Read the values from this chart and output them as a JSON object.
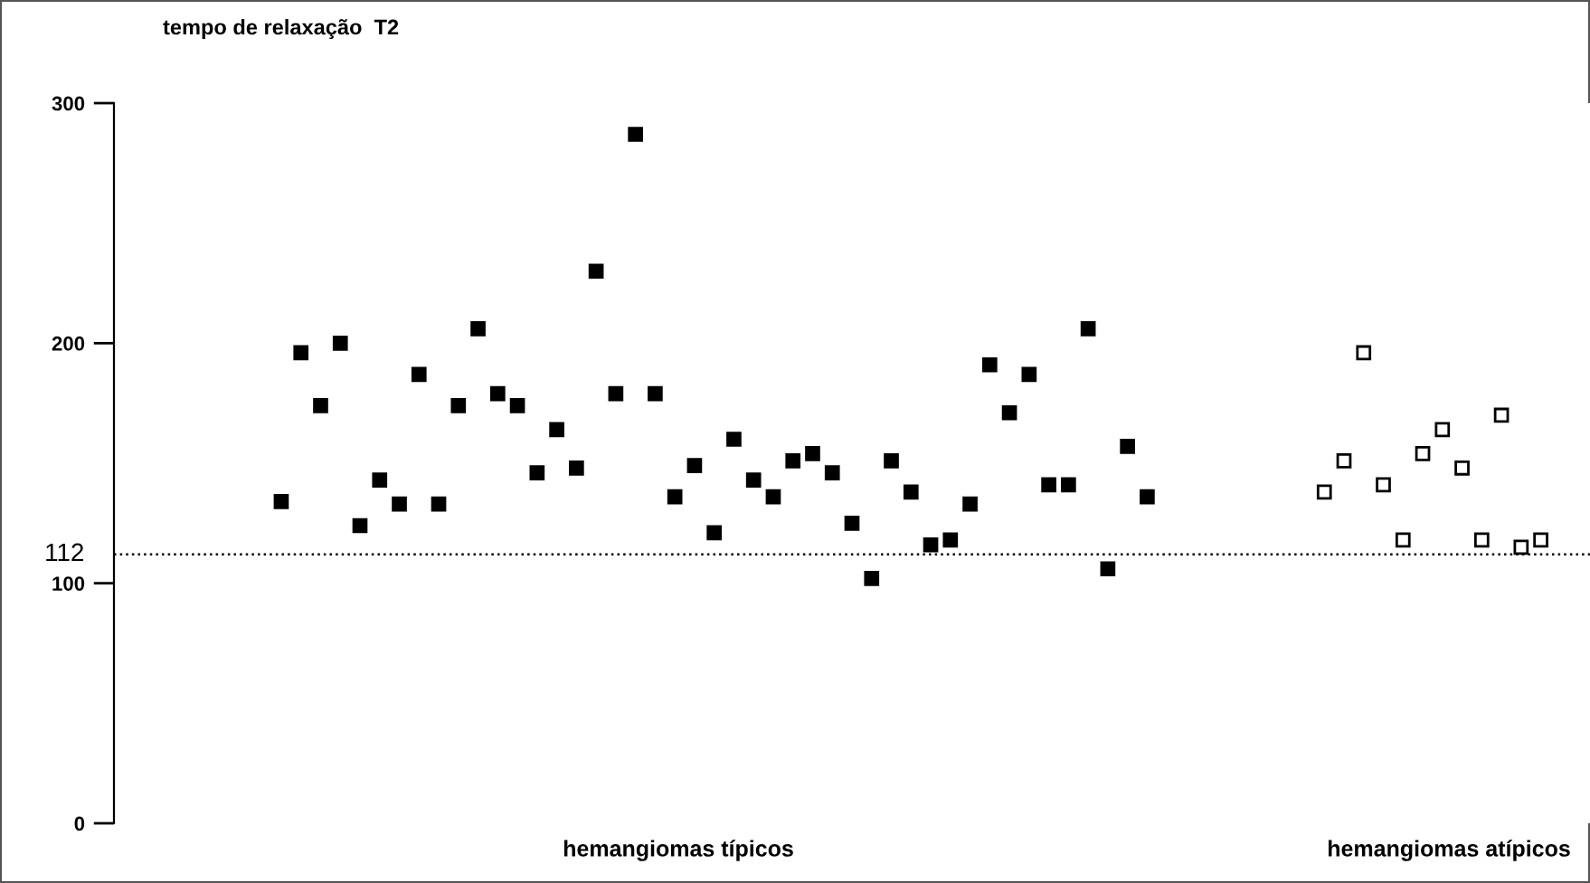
{
  "chart_data": {
    "type": "scatter",
    "ylabel": "tempo de relaxação  T2",
    "annotations": [
      "hemangiomas típicos",
      "hemangiomas atípicos"
    ],
    "categories": [
      null,
      null,
      null,
      null,
      null,
      null,
      null,
      null,
      null,
      null,
      null,
      null,
      null,
      null,
      null,
      null,
      null,
      null,
      null,
      null,
      null,
      null,
      null,
      null,
      null,
      null,
      null,
      null,
      null,
      null,
      null,
      null,
      null,
      null,
      null,
      null,
      null,
      null,
      null,
      null,
      null,
      null,
      null,
      null,
      null,
      null,
      null,
      null,
      null,
      null,
      null,
      null,
      null,
      null,
      null,
      null,
      null,
      null,
      null,
      null,
      null,
      null,
      null,
      null,
      null,
      null,
      null,
      null,
      null,
      null,
      null,
      null,
      null,
      null,
      null
    ],
    "ylim": [
      0,
      300
    ],
    "yticks": [
      0,
      100,
      200,
      300
    ],
    "tick_labels": "y",
    "marker": "square",
    "grid": false,
    "legend": false,
    "ref_lines": [
      {
        "axis": "y",
        "value": 112,
        "label": "112",
        "line_style": "dotted",
        "color": "#000000"
      }
    ],
    "series": [
      {
        "color": "#000000",
        "values": [
          null,
          null,
          null,
          null,
          null,
          null,
          null,
          null,
          134,
          196,
          174,
          200,
          124,
          143,
          133,
          187,
          133,
          174,
          206,
          179,
          174,
          146,
          164,
          148,
          230,
          179,
          287,
          179,
          136,
          149,
          121,
          160,
          143,
          136,
          151,
          154,
          146,
          125,
          102,
          151,
          138,
          116,
          118,
          133,
          191,
          171,
          187,
          141,
          141,
          206,
          106,
          157,
          136,
          null,
          null,
          null,
          null,
          null,
          null,
          null,
          null,
          null,
          null,
          null,
          null,
          null,
          null,
          null,
          null,
          null,
          null,
          null,
          null,
          null,
          null
        ]
      },
      {
        "color": "#ffffff",
        "values": [
          null,
          null,
          null,
          null,
          null,
          null,
          null,
          null,
          null,
          null,
          null,
          null,
          null,
          null,
          null,
          null,
          null,
          null,
          null,
          null,
          null,
          null,
          null,
          null,
          null,
          null,
          null,
          null,
          null,
          null,
          null,
          null,
          null,
          null,
          null,
          null,
          null,
          null,
          null,
          null,
          null,
          null,
          null,
          null,
          null,
          null,
          null,
          null,
          null,
          null,
          null,
          null,
          null,
          null,
          null,
          null,
          null,
          null,
          null,
          null,
          null,
          138,
          151,
          196,
          141,
          118,
          154,
          164,
          148,
          118,
          170,
          115,
          118,
          null,
          null
        ]
      }
    ]
  }
}
